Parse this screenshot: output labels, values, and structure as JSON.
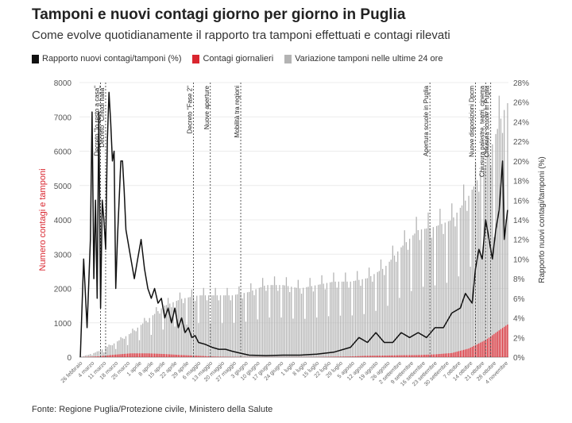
{
  "title": "Tamponi e nuovi contagi giorno per giorno in Puglia",
  "subtitle": "Come evolve quotidianamente il rapporto tra tamponi effettuati e contagi rilevati",
  "source": "Fonte: Regione Puglia/Protezione civile, Ministero della Salute",
  "colors": {
    "ratio": "#111111",
    "cases": "#d9262f",
    "tests": "#b3b3b3"
  },
  "chart_data": {
    "type": "bar",
    "ylabel": "Numero contagi e tamponi",
    "y2label": "Rapporto nuovi contagi/tamponi (%)",
    "ylim": [
      0,
      8000
    ],
    "y2lim": [
      0,
      28
    ],
    "yticks": [
      "0",
      "1000",
      "2000",
      "3000",
      "4000",
      "5000",
      "6000",
      "7000",
      "8000"
    ],
    "y2ticks": [
      "0%",
      "2%",
      "4%",
      "6%",
      "8%",
      "10%",
      "12%",
      "14%",
      "16%",
      "18%",
      "20%",
      "22%",
      "24%",
      "26%",
      "28%"
    ],
    "xticks": [
      "26 febbraio",
      "4 marzo",
      "11 marzo",
      "18 marzo",
      "25 marzo",
      "1 aprile",
      "8 aprile",
      "15 aprile",
      "22 aprile",
      "29 aprile",
      "6 maggio",
      "13 maggio",
      "20 maggio",
      "27 maggio",
      "3 giugno",
      "10 giugno",
      "17 giugno",
      "24 giugno",
      "1 luglio",
      "8 luglio",
      "15 luglio",
      "22 luglio",
      "29 luglio",
      "5 agosto",
      "12 agosto",
      "19 agosto",
      "26 agosto",
      "2 settembre",
      "9 settembre",
      "16 settembre",
      "23 settembre",
      "30 settembre",
      "7 ottobre",
      "14 ottobre",
      "21 ottobre",
      "28 ottobre",
      "4 novembre"
    ],
    "legend": [
      {
        "label": "Rapporto nuovi contagi/tamponi (%)",
        "color": "#111111"
      },
      {
        "label": "Contagi giornalieri",
        "color": "#d9262f"
      },
      {
        "label": "Variazione tamponi nelle ultime 24 ore",
        "color": "#b3b3b3"
      }
    ],
    "annotations": [
      {
        "day": 12,
        "label": "Decreto \"Io resto a casa\""
      },
      {
        "day": 15,
        "label": "Decreto \"Chiudi Italia\""
      },
      {
        "day": 67,
        "label": "Decreto \"Fase 2\""
      },
      {
        "day": 77,
        "label": "Nuove aperture"
      },
      {
        "day": 95,
        "label": "Mobilità tra regioni"
      },
      {
        "day": 207,
        "label": "Apertura scuole in Puglia"
      },
      {
        "day": 234,
        "label": "Nuove disposizioni Dpcm"
      },
      {
        "day": 240,
        "label": "Chiusura palestre, teatri, cinema"
      },
      {
        "day": 243,
        "label": "Chiusura scuole in Puglia"
      }
    ],
    "series": [
      {
        "name": "Variazione tamponi nelle ultime 24 ore",
        "type": "bar",
        "axis": "left",
        "keypoints": [
          [
            0,
            0
          ],
          [
            10,
            150
          ],
          [
            20,
            400
          ],
          [
            30,
            700
          ],
          [
            40,
            1100
          ],
          [
            50,
            1500
          ],
          [
            60,
            1700
          ],
          [
            70,
            1800
          ],
          [
            80,
            1800
          ],
          [
            90,
            1800
          ],
          [
            100,
            1900
          ],
          [
            110,
            2100
          ],
          [
            120,
            2100
          ],
          [
            130,
            2000
          ],
          [
            140,
            2100
          ],
          [
            150,
            2200
          ],
          [
            160,
            2200
          ],
          [
            170,
            2300
          ],
          [
            180,
            2600
          ],
          [
            190,
            3200
          ],
          [
            200,
            3700
          ],
          [
            210,
            3800
          ],
          [
            220,
            4000
          ],
          [
            230,
            4700
          ],
          [
            240,
            5600
          ],
          [
            250,
            7100
          ],
          [
            253,
            7400
          ]
        ]
      },
      {
        "name": "Contagi giornalieri",
        "type": "bar",
        "axis": "left",
        "keypoints": [
          [
            0,
            0
          ],
          [
            10,
            20
          ],
          [
            20,
            70
          ],
          [
            30,
            110
          ],
          [
            40,
            110
          ],
          [
            50,
            90
          ],
          [
            60,
            60
          ],
          [
            70,
            40
          ],
          [
            80,
            15
          ],
          [
            90,
            8
          ],
          [
            100,
            4
          ],
          [
            120,
            3
          ],
          [
            140,
            5
          ],
          [
            160,
            20
          ],
          [
            170,
            40
          ],
          [
            180,
            45
          ],
          [
            190,
            55
          ],
          [
            200,
            60
          ],
          [
            210,
            80
          ],
          [
            220,
            120
          ],
          [
            230,
            250
          ],
          [
            240,
            500
          ],
          [
            250,
            850
          ],
          [
            253,
            950
          ]
        ]
      },
      {
        "name": "Rapporto nuovi contagi/tamponi (%)",
        "type": "line",
        "axis": "right",
        "keypoints": [
          [
            0,
            0
          ],
          [
            2,
            10
          ],
          [
            4,
            3
          ],
          [
            6,
            12
          ],
          [
            7,
            25
          ],
          [
            8,
            8
          ],
          [
            9,
            16
          ],
          [
            10,
            6
          ],
          [
            11,
            25
          ],
          [
            12,
            5
          ],
          [
            13,
            16
          ],
          [
            14,
            14
          ],
          [
            15,
            11
          ],
          [
            16,
            22
          ],
          [
            17,
            27
          ],
          [
            18,
            24
          ],
          [
            19,
            20
          ],
          [
            20,
            21
          ],
          [
            21,
            7
          ],
          [
            22,
            12
          ],
          [
            24,
            20
          ],
          [
            25,
            20
          ],
          [
            26,
            17
          ],
          [
            27,
            13
          ],
          [
            28,
            12
          ],
          [
            30,
            10
          ],
          [
            32,
            8
          ],
          [
            34,
            10
          ],
          [
            36,
            12
          ],
          [
            38,
            9
          ],
          [
            40,
            7
          ],
          [
            42,
            6
          ],
          [
            44,
            7
          ],
          [
            46,
            5.5
          ],
          [
            48,
            6
          ],
          [
            50,
            4
          ],
          [
            52,
            5
          ],
          [
            54,
            3.5
          ],
          [
            56,
            5
          ],
          [
            58,
            3
          ],
          [
            60,
            4
          ],
          [
            62,
            2.5
          ],
          [
            64,
            3
          ],
          [
            66,
            2
          ],
          [
            68,
            2.2
          ],
          [
            70,
            1.5
          ],
          [
            74,
            1.3
          ],
          [
            78,
            1
          ],
          [
            82,
            0.8
          ],
          [
            86,
            0.8
          ],
          [
            90,
            0.6
          ],
          [
            95,
            0.4
          ],
          [
            100,
            0.2
          ],
          [
            110,
            0.15
          ],
          [
            120,
            0.2
          ],
          [
            130,
            0.2
          ],
          [
            140,
            0.3
          ],
          [
            150,
            0.5
          ],
          [
            160,
            1
          ],
          [
            165,
            2
          ],
          [
            170,
            1.5
          ],
          [
            175,
            2.5
          ],
          [
            180,
            1.5
          ],
          [
            185,
            1.5
          ],
          [
            190,
            2.5
          ],
          [
            195,
            2
          ],
          [
            200,
            2.5
          ],
          [
            205,
            2
          ],
          [
            210,
            3
          ],
          [
            215,
            3
          ],
          [
            220,
            4.5
          ],
          [
            225,
            5
          ],
          [
            228,
            6.5
          ],
          [
            230,
            6
          ],
          [
            232,
            5.5
          ],
          [
            234,
            9
          ],
          [
            236,
            11
          ],
          [
            238,
            10
          ],
          [
            240,
            14
          ],
          [
            242,
            12
          ],
          [
            244,
            10
          ],
          [
            246,
            13
          ],
          [
            248,
            15
          ],
          [
            250,
            20
          ],
          [
            251,
            12
          ],
          [
            253,
            15
          ]
        ]
      }
    ]
  }
}
